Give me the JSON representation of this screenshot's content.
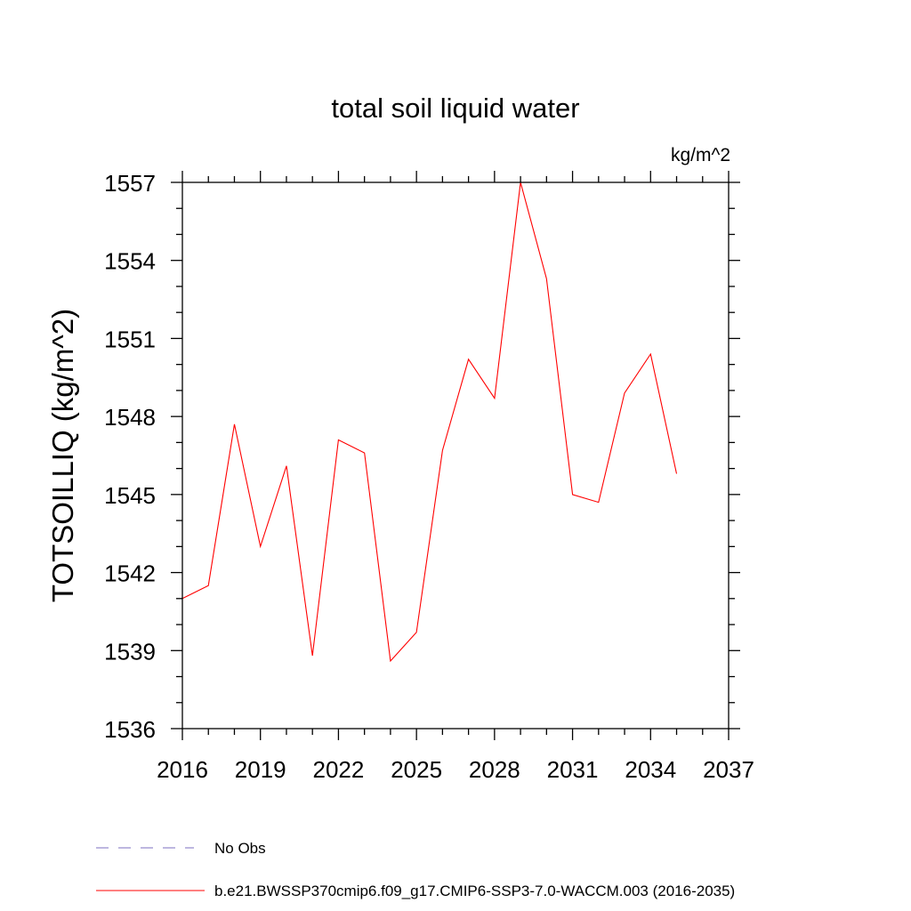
{
  "chart_data": {
    "type": "line",
    "title": "total soil liquid water",
    "units_label": "kg/m^2",
    "xlabel": "",
    "ylabel": "TOTSOILLIQ  (kg/m^2)",
    "xlim": [
      2016,
      2037
    ],
    "ylim": [
      1536,
      1557
    ],
    "x_ticks": [
      2016,
      2019,
      2022,
      2025,
      2028,
      2031,
      2034,
      2037
    ],
    "y_ticks": [
      1536,
      1539,
      1542,
      1545,
      1548,
      1551,
      1554,
      1557
    ],
    "x_minor_step": 1,
    "y_minor_step": 1,
    "grid": false,
    "series": [
      {
        "name": "b.e21.BWSSP370cmip6.f09_g17.CMIP6-SSP3-7.0-WACCM.003 (2016-2035)",
        "color": "#ff0000",
        "style": "solid",
        "x": [
          2016,
          2017,
          2018,
          2019,
          2020,
          2021,
          2022,
          2023,
          2024,
          2025,
          2026,
          2027,
          2028,
          2029,
          2030,
          2031,
          2032,
          2033,
          2034,
          2035
        ],
        "y": [
          1541.0,
          1541.5,
          1547.7,
          1543.0,
          1546.1,
          1538.8,
          1547.1,
          1546.6,
          1538.6,
          1539.7,
          1546.7,
          1550.2,
          1548.7,
          1557.0,
          1553.3,
          1545.0,
          1544.7,
          1548.9,
          1550.4,
          1545.8
        ]
      }
    ],
    "legend": [
      {
        "label": "No Obs",
        "color": "#7b6fc0",
        "style": "dashed"
      },
      {
        "label": "b.e21.BWSSP370cmip6.f09_g17.CMIP6-SSP3-7.0-WACCM.003 (2016-2035)",
        "color": "#ff0000",
        "style": "solid"
      }
    ],
    "legend_position": "bottom-left"
  }
}
